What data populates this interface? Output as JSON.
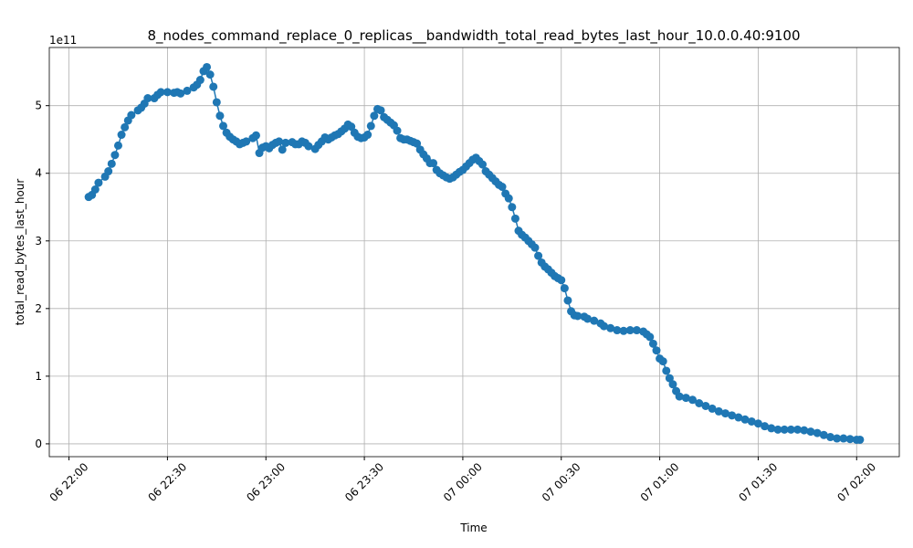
{
  "chart_data": {
    "type": "line",
    "title": "8_nodes_command_replace_0_replicas__bandwidth_total_read_bytes_last_hour_10.0.0.40:9100",
    "x_label": "Time",
    "y_label": "total_read_bytes_last_hour",
    "y_offset_label": "1e11",
    "color": "#1f77b4",
    "grid": true,
    "markers": true,
    "xlim": [
      "06 21:54",
      "07 02:13"
    ],
    "xticks": [
      "06 22:00",
      "06 22:30",
      "06 23:00",
      "06 23:30",
      "07 00:00",
      "07 00:30",
      "07 01:00",
      "07 01:30",
      "07 02:00"
    ],
    "ylim": [
      -0.19,
      5.86
    ],
    "yticks": [
      0,
      1,
      2,
      3,
      4,
      5
    ],
    "x": [
      "06 22:06",
      "06 22:07",
      "06 22:08",
      "06 22:09",
      "06 22:11",
      "06 22:12",
      "06 22:13",
      "06 22:14",
      "06 22:15",
      "06 22:16",
      "06 22:17",
      "06 22:18",
      "06 22:19",
      "06 22:21",
      "06 22:22",
      "06 22:23",
      "06 22:24",
      "06 22:26",
      "06 22:27",
      "06 22:28",
      "06 22:30",
      "06 22:32",
      "06 22:33",
      "06 22:34",
      "06 22:36",
      "06 22:38",
      "06 22:39",
      "06 22:40",
      "06 22:41",
      "06 22:42",
      "06 22:43",
      "06 22:44",
      "06 22:45",
      "06 22:46",
      "06 22:47",
      "06 22:48",
      "06 22:49",
      "06 22:50",
      "06 22:51",
      "06 22:52",
      "06 22:53",
      "06 22:54",
      "06 22:56",
      "06 22:57",
      "06 22:58",
      "06 22:59",
      "06 23:00",
      "06 23:01",
      "06 23:02",
      "06 23:03",
      "06 23:04",
      "06 23:05",
      "06 23:06",
      "06 23:08",
      "06 23:09",
      "06 23:10",
      "06 23:11",
      "06 23:12",
      "06 23:13",
      "06 23:15",
      "06 23:16",
      "06 23:17",
      "06 23:18",
      "06 23:19",
      "06 23:20",
      "06 23:21",
      "06 23:22",
      "06 23:23",
      "06 23:24",
      "06 23:25",
      "06 23:26",
      "06 23:27",
      "06 23:28",
      "06 23:29",
      "06 23:30",
      "06 23:31",
      "06 23:32",
      "06 23:33",
      "06 23:34",
      "06 23:35",
      "06 23:36",
      "06 23:37",
      "06 23:38",
      "06 23:39",
      "06 23:40",
      "06 23:41",
      "06 23:42",
      "06 23:43",
      "06 23:44",
      "06 23:45",
      "06 23:46",
      "06 23:47",
      "06 23:48",
      "06 23:49",
      "06 23:50",
      "06 23:51",
      "06 23:52",
      "06 23:53",
      "06 23:54",
      "06 23:55",
      "06 23:56",
      "06 23:57",
      "06 23:58",
      "06 23:59",
      "07 00:00",
      "07 00:01",
      "07 00:02",
      "07 00:03",
      "07 00:04",
      "07 00:05",
      "07 00:06",
      "07 00:07",
      "07 00:08",
      "07 00:09",
      "07 00:10",
      "07 00:11",
      "07 00:12",
      "07 00:13",
      "07 00:14",
      "07 00:15",
      "07 00:16",
      "07 00:17",
      "07 00:18",
      "07 00:19",
      "07 00:20",
      "07 00:21",
      "07 00:22",
      "07 00:23",
      "07 00:24",
      "07 00:25",
      "07 00:26",
      "07 00:27",
      "07 00:28",
      "07 00:29",
      "07 00:30",
      "07 00:31",
      "07 00:32",
      "07 00:33",
      "07 00:34",
      "07 00:35",
      "07 00:37",
      "07 00:38",
      "07 00:40",
      "07 00:42",
      "07 00:43",
      "07 00:45",
      "07 00:47",
      "07 00:49",
      "07 00:51",
      "07 00:53",
      "07 00:55",
      "07 00:56",
      "07 00:57",
      "07 00:58",
      "07 00:59",
      "07 01:00",
      "07 01:01",
      "07 01:02",
      "07 01:03",
      "07 01:04",
      "07 01:05",
      "07 01:06",
      "07 01:08",
      "07 01:10",
      "07 01:12",
      "07 01:14",
      "07 01:16",
      "07 01:18",
      "07 01:20",
      "07 01:22",
      "07 01:24",
      "07 01:26",
      "07 01:28",
      "07 01:30",
      "07 01:32",
      "07 01:34",
      "07 01:36",
      "07 01:38",
      "07 01:40",
      "07 01:42",
      "07 01:44",
      "07 01:46",
      "07 01:48",
      "07 01:50",
      "07 01:52",
      "07 01:54",
      "07 01:56",
      "07 01:58",
      "07 02:00",
      "07 02:01"
    ],
    "values": [
      3.65,
      3.68,
      3.76,
      3.86,
      3.95,
      4.03,
      4.14,
      4.27,
      4.41,
      4.57,
      4.68,
      4.78,
      4.86,
      4.93,
      4.97,
      5.03,
      5.11,
      5.11,
      5.16,
      5.2,
      5.2,
      5.19,
      5.2,
      5.18,
      5.22,
      5.27,
      5.31,
      5.38,
      5.51,
      5.57,
      5.46,
      5.28,
      5.05,
      4.85,
      4.7,
      4.6,
      4.54,
      4.5,
      4.47,
      4.43,
      4.45,
      4.47,
      4.52,
      4.56,
      4.3,
      4.38,
      4.4,
      4.37,
      4.42,
      4.45,
      4.47,
      4.35,
      4.45,
      4.46,
      4.43,
      4.43,
      4.47,
      4.45,
      4.4,
      4.36,
      4.42,
      4.47,
      4.53,
      4.5,
      4.53,
      4.56,
      4.58,
      4.62,
      4.66,
      4.72,
      4.69,
      4.6,
      4.54,
      4.52,
      4.53,
      4.57,
      4.7,
      4.85,
      4.95,
      4.93,
      4.83,
      4.79,
      4.75,
      4.71,
      4.63,
      4.52,
      4.5,
      4.5,
      4.48,
      4.46,
      4.44,
      4.35,
      4.28,
      4.22,
      4.15,
      4.15,
      4.05,
      4.0,
      3.97,
      3.94,
      3.92,
      3.94,
      3.98,
      4.02,
      4.05,
      4.1,
      4.15,
      4.2,
      4.23,
      4.18,
      4.13,
      4.03,
      3.98,
      3.93,
      3.88,
      3.83,
      3.8,
      3.7,
      3.63,
      3.5,
      3.33,
      3.15,
      3.09,
      3.05,
      3.0,
      2.95,
      2.9,
      2.78,
      2.68,
      2.62,
      2.58,
      2.53,
      2.48,
      2.45,
      2.42,
      2.3,
      2.12,
      1.96,
      1.9,
      1.89,
      1.88,
      1.85,
      1.82,
      1.78,
      1.74,
      1.71,
      1.68,
      1.67,
      1.68,
      1.68,
      1.66,
      1.62,
      1.58,
      1.48,
      1.38,
      1.26,
      1.22,
      1.08,
      0.97,
      0.88,
      0.78,
      0.7,
      0.68,
      0.65,
      0.6,
      0.56,
      0.52,
      0.48,
      0.45,
      0.42,
      0.39,
      0.36,
      0.33,
      0.3,
      0.26,
      0.23,
      0.21,
      0.21,
      0.21,
      0.21,
      0.2,
      0.18,
      0.16,
      0.13,
      0.1,
      0.08,
      0.08,
      0.07,
      0.06,
      0.06
    ]
  }
}
